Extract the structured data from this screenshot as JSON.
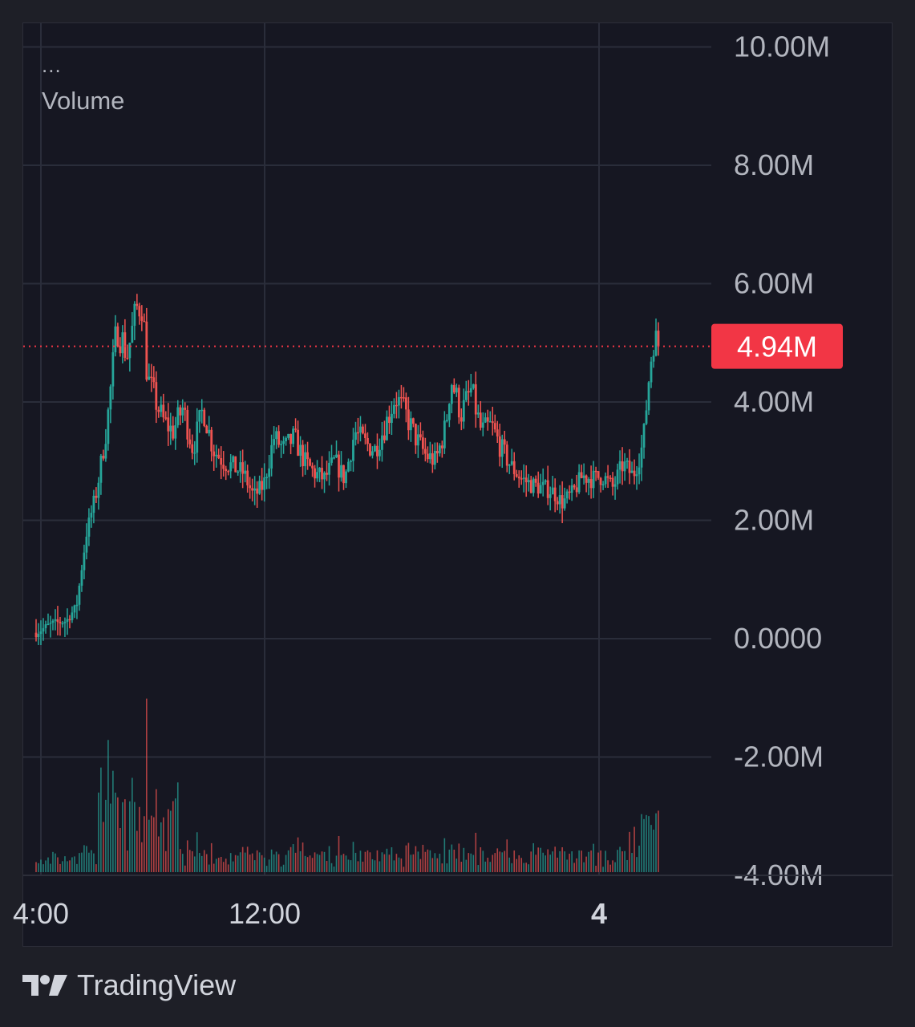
{
  "legend": {
    "dots": "...",
    "label": "Volume"
  },
  "brand": {
    "name": "TradingView",
    "logo_icon": "tradingview-logo-icon"
  },
  "colors": {
    "background": "#1e1f27",
    "pane": "#161722",
    "grid": "#2a2d3a",
    "text": "#d1d4dc",
    "up": "#26a69a",
    "down": "#ef5350",
    "last_price": "#f23645"
  },
  "chart_data": {
    "type": "candlestick",
    "title": "",
    "y_axis": {
      "ticks": [
        "10.00M",
        "8.00M",
        "6.00M",
        "4.00M",
        "2.00M",
        "0.0000",
        "-2.00M",
        "-4.00M"
      ],
      "tick_values": [
        10,
        8,
        6,
        4,
        2,
        0,
        -2,
        -4
      ],
      "unit": "M",
      "ylim": [
        -4.0,
        10.4
      ]
    },
    "x_axis": {
      "ticks": [
        "4:00",
        "12:00",
        "4"
      ],
      "bold_ticks": [
        "4"
      ]
    },
    "last_price": {
      "label": "4.94M",
      "value": 4.94
    },
    "grid": true,
    "series": [
      {
        "name": "",
        "type": "candlestick",
        "approx_close_path": [
          {
            "t": 0,
            "v": 0.1
          },
          {
            "t": 3,
            "v": 0.25
          },
          {
            "t": 6,
            "v": 0.3
          },
          {
            "t": 8,
            "v": 0.55
          },
          {
            "t": 10,
            "v": 1.8
          },
          {
            "t": 12,
            "v": 2.5
          },
          {
            "t": 14,
            "v": 3.6
          },
          {
            "t": 16,
            "v": 5.3
          },
          {
            "t": 18,
            "v": 4.8
          },
          {
            "t": 20,
            "v": 5.6
          },
          {
            "t": 21,
            "v": 5.7
          },
          {
            "t": 22,
            "v": 4.4
          },
          {
            "t": 25,
            "v": 3.7
          },
          {
            "t": 27,
            "v": 3.5
          },
          {
            "t": 29,
            "v": 3.9
          },
          {
            "t": 31,
            "v": 3.2
          },
          {
            "t": 33,
            "v": 3.9
          },
          {
            "t": 35,
            "v": 3.2
          },
          {
            "t": 37,
            "v": 3.0
          },
          {
            "t": 39,
            "v": 2.9
          },
          {
            "t": 41,
            "v": 2.8
          },
          {
            "t": 43,
            "v": 2.4
          },
          {
            "t": 45,
            "v": 2.6
          },
          {
            "t": 47,
            "v": 3.4
          },
          {
            "t": 49,
            "v": 3.2
          },
          {
            "t": 51,
            "v": 3.4
          },
          {
            "t": 53,
            "v": 3.0
          },
          {
            "t": 55,
            "v": 2.8
          },
          {
            "t": 57,
            "v": 2.7
          },
          {
            "t": 59,
            "v": 3.0
          },
          {
            "t": 61,
            "v": 2.7
          },
          {
            "t": 63,
            "v": 3.5
          },
          {
            "t": 65,
            "v": 3.3
          },
          {
            "t": 67,
            "v": 3.2
          },
          {
            "t": 69,
            "v": 3.6
          },
          {
            "t": 71,
            "v": 4.1
          },
          {
            "t": 73,
            "v": 3.8
          },
          {
            "t": 75,
            "v": 3.4
          },
          {
            "t": 77,
            "v": 3.1
          },
          {
            "t": 79,
            "v": 3.0
          },
          {
            "t": 81,
            "v": 3.6
          },
          {
            "t": 82,
            "v": 4.4
          },
          {
            "t": 84,
            "v": 3.8
          },
          {
            "t": 86,
            "v": 4.2
          },
          {
            "t": 88,
            "v": 3.5
          },
          {
            "t": 90,
            "v": 3.6
          },
          {
            "t": 92,
            "v": 3.2
          },
          {
            "t": 94,
            "v": 2.9
          },
          {
            "t": 96,
            "v": 2.7
          },
          {
            "t": 98,
            "v": 2.6
          },
          {
            "t": 100,
            "v": 2.55
          },
          {
            "t": 102,
            "v": 2.5
          },
          {
            "t": 104,
            "v": 2.3
          },
          {
            "t": 106,
            "v": 2.45
          },
          {
            "t": 108,
            "v": 2.75
          },
          {
            "t": 110,
            "v": 2.7
          },
          {
            "t": 112,
            "v": 2.75
          },
          {
            "t": 114,
            "v": 2.55
          },
          {
            "t": 116,
            "v": 2.95
          },
          {
            "t": 118,
            "v": 2.75
          },
          {
            "t": 120,
            "v": 3.3
          },
          {
            "t": 121,
            "v": 4.3
          },
          {
            "t": 122,
            "v": 5.1
          },
          {
            "t": 123,
            "v": 4.94
          }
        ]
      }
    ]
  }
}
